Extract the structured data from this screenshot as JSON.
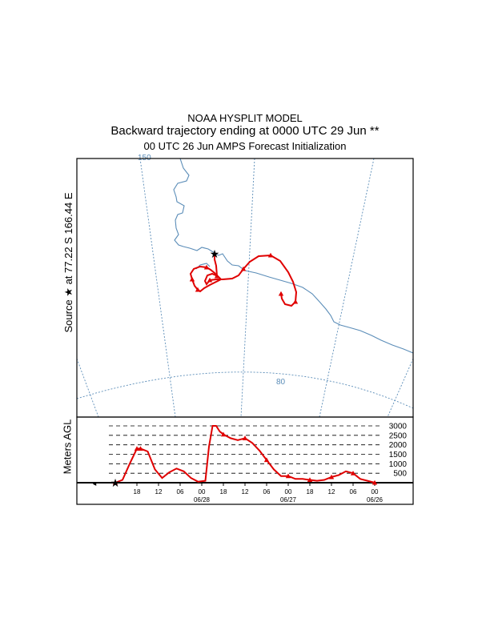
{
  "header": {
    "model": "NOAA HYSPLIT MODEL",
    "title": "Backward trajectory ending at 0000 UTC 29 Jun **",
    "subtitle": "00 UTC 26 Jun    AMPS  Forecast Initialization"
  },
  "source_label": "Source ★ at   77.22 S  166.44 E",
  "map": {
    "meridian_label": "150",
    "parallel_label": "80",
    "line_color": "#5b8db8",
    "trajectory_color": "#e00000"
  },
  "chart_data": {
    "type": "line",
    "ylabel": "Meters AGL",
    "y_ticks": [
      500,
      1000,
      1500,
      2000,
      2500,
      3000
    ],
    "ylim": [
      0,
      3400
    ],
    "x_ticks": [
      "18",
      "12",
      "06",
      "00",
      "18",
      "12",
      "06",
      "00",
      "18",
      "12",
      "06",
      "00"
    ],
    "date_labels": [
      "06/28",
      "06/27",
      "06/26"
    ],
    "series": [
      {
        "hours_before_end": [
          72,
          70,
          68,
          66,
          65,
          63,
          61,
          59,
          57,
          55,
          53,
          51,
          49,
          47,
          46,
          45,
          44,
          43,
          42,
          40,
          38,
          36,
          34,
          32,
          30,
          28,
          26,
          24,
          22,
          20,
          18,
          16,
          14,
          12,
          10,
          8,
          6,
          4,
          2,
          0
        ],
        "height_m": [
          0,
          150,
          1000,
          1800,
          1800,
          1650,
          700,
          250,
          550,
          750,
          600,
          250,
          50,
          100,
          1900,
          3000,
          3000,
          2700,
          2550,
          2350,
          2250,
          2350,
          2100,
          1700,
          1200,
          700,
          350,
          350,
          200,
          200,
          150,
          100,
          150,
          300,
          400,
          600,
          500,
          200,
          100,
          0
        ]
      }
    ]
  }
}
